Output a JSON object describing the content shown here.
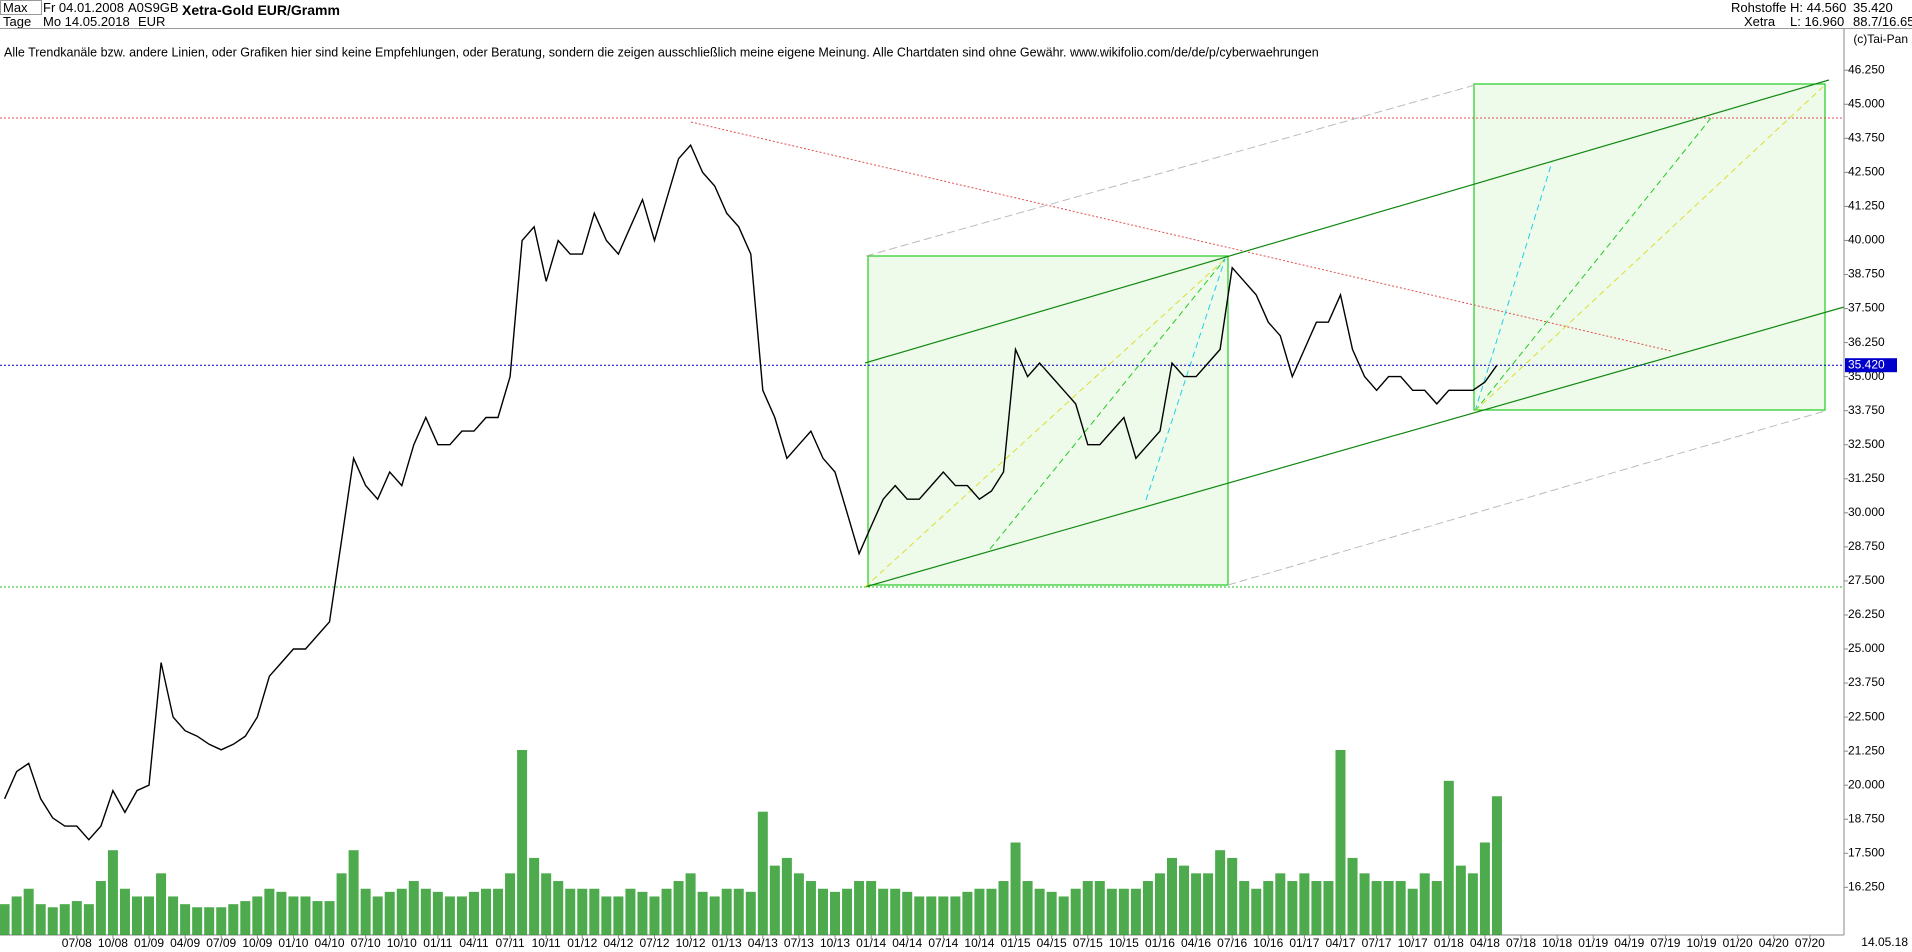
{
  "header": {
    "range": "Max",
    "start": "Fr 04.01.2008",
    "code": "A0S9GB",
    "title": "Xetra-Gold EUR/Gramm",
    "period": "Tage",
    "end": "Mo 14.05.2018",
    "currency": "EUR",
    "group": "Rohstoffe",
    "exchange": "Xetra",
    "high": "H: 44.560",
    "low": "L: 16.960",
    "price": "35.420",
    "ratio": "88.7/16.65"
  },
  "credit": "(c)Tai-Pan",
  "disclaimer": "Alle Trendkanäle bzw. andere Linien, oder Grafiken hier sind keine Empfehlungen, oder Beratung, sondern die zeigen ausschließlich meine eigene Meinung. Alle Chartdaten sind ohne Gewähr.  www.wikifolio.com/de/de/p/cyberwaehrungen",
  "chart_data": {
    "type": "line",
    "color": "#000000",
    "volume_color": "#2e9b2e",
    "last_color": "#0000cc",
    "categories": [
      null,
      null,
      null,
      null,
      null,
      null,
      "07/08",
      null,
      null,
      "10/08",
      null,
      null,
      "01/09",
      null,
      null,
      "04/09",
      null,
      null,
      "07/09",
      null,
      null,
      "10/09",
      null,
      null,
      "01/10",
      null,
      null,
      "04/10",
      null,
      null,
      "07/10",
      null,
      null,
      "10/10",
      null,
      null,
      "01/11",
      null,
      null,
      "04/11",
      null,
      null,
      "07/11",
      null,
      null,
      "10/11",
      null,
      null,
      "01/12",
      null,
      null,
      "04/12",
      null,
      null,
      "07/12",
      null,
      null,
      "10/12",
      null,
      null,
      "01/13",
      null,
      null,
      "04/13",
      null,
      null,
      "07/13",
      null,
      null,
      "10/13",
      null,
      null,
      "01/14",
      null,
      null,
      "04/14",
      null,
      null,
      "07/14",
      null,
      null,
      "10/14",
      null,
      null,
      "01/15",
      null,
      null,
      "04/15",
      null,
      null,
      "07/15",
      null,
      null,
      "10/15",
      null,
      null,
      "01/16",
      null,
      null,
      "04/16",
      null,
      null,
      "07/16",
      null,
      null,
      "10/16",
      null,
      null,
      "01/17",
      null,
      null,
      "04/17",
      null,
      null,
      "07/17",
      null,
      null,
      "10/17",
      null,
      null,
      "01/18",
      null,
      null,
      "04/18",
      null,
      null,
      "07/18",
      null,
      null,
      "10/18",
      null,
      null,
      "01/19",
      null,
      null,
      "04/19",
      null,
      null,
      "07/19",
      null,
      null,
      "10/19",
      null,
      null,
      "01/20",
      null,
      null,
      "04/20",
      null,
      null,
      "07/20",
      null,
      null
    ],
    "values": [
      19.5,
      20.5,
      20.8,
      19.5,
      18.8,
      18.5,
      18.5,
      18.0,
      18.5,
      19.8,
      19.0,
      19.8,
      20.0,
      24.5,
      22.5,
      22.0,
      21.8,
      21.5,
      21.3,
      21.5,
      21.8,
      22.5,
      24.0,
      24.5,
      25.0,
      25.0,
      25.5,
      26.0,
      29.0,
      32.0,
      31.0,
      30.5,
      31.5,
      31.0,
      32.5,
      33.5,
      32.5,
      32.5,
      33.0,
      33.0,
      33.5,
      33.5,
      35.0,
      40.0,
      40.5,
      38.5,
      40.0,
      39.5,
      39.5,
      41.0,
      40.0,
      39.5,
      40.5,
      41.5,
      40.0,
      41.5,
      43.0,
      43.5,
      42.5,
      42.0,
      41.0,
      40.5,
      39.5,
      34.5,
      33.5,
      32.0,
      32.5,
      33.0,
      32.0,
      31.5,
      30.0,
      28.5,
      29.5,
      30.5,
      31.0,
      30.5,
      30.5,
      31.0,
      31.5,
      31.0,
      31.0,
      30.5,
      30.8,
      31.5,
      36.0,
      35.0,
      35.5,
      35.0,
      34.5,
      34.0,
      32.5,
      32.5,
      33.0,
      33.5,
      32.0,
      32.5,
      33.0,
      35.5,
      35.0,
      35.0,
      35.5,
      36.0,
      39.0,
      38.5,
      38.0,
      37.0,
      36.5,
      35.0,
      36.0,
      37.0,
      37.0,
      38.0,
      36.0,
      35.0,
      34.5,
      35.0,
      35.0,
      34.5,
      34.5,
      34.0,
      34.5,
      34.5,
      34.5,
      34.8,
      35.42,
      null,
      null,
      null,
      null,
      null,
      null,
      null,
      null,
      null,
      null,
      null,
      null,
      null,
      null,
      null,
      null,
      null,
      null,
      null,
      null,
      null,
      null,
      null,
      null,
      null,
      null,
      null,
      null
    ],
    "volume": [
      20,
      25,
      30,
      20,
      18,
      20,
      22,
      20,
      35,
      55,
      30,
      25,
      25,
      40,
      25,
      20,
      18,
      18,
      18,
      20,
      22,
      25,
      30,
      28,
      25,
      25,
      22,
      22,
      40,
      55,
      30,
      25,
      28,
      30,
      35,
      30,
      28,
      25,
      25,
      28,
      30,
      30,
      40,
      120,
      50,
      40,
      35,
      30,
      30,
      30,
      25,
      25,
      30,
      28,
      25,
      30,
      35,
      40,
      28,
      25,
      30,
      30,
      28,
      80,
      45,
      50,
      40,
      35,
      30,
      28,
      30,
      35,
      35,
      30,
      30,
      28,
      25,
      25,
      25,
      25,
      28,
      30,
      30,
      35,
      60,
      35,
      30,
      28,
      25,
      30,
      35,
      35,
      30,
      30,
      30,
      35,
      40,
      50,
      45,
      40,
      40,
      55,
      50,
      35,
      30,
      35,
      40,
      35,
      40,
      35,
      35,
      120,
      50,
      40,
      35,
      35,
      35,
      30,
      40,
      35,
      100,
      45,
      40,
      60,
      90,
      null,
      null,
      null,
      null,
      null,
      null,
      null,
      null,
      null,
      null,
      null,
      null,
      null,
      null,
      null,
      null,
      null,
      null,
      null,
      null,
      null,
      null,
      null,
      null,
      null,
      null,
      null,
      null
    ],
    "last": {
      "value": 35.42,
      "label": "35.420"
    },
    "ylim": [
      14.5,
      47.8
    ],
    "yticks": [
      {
        "value": 16.25,
        "label": "16.250"
      },
      {
        "value": 17.5,
        "label": "17.500"
      },
      {
        "value": 18.75,
        "label": "18.750"
      },
      {
        "value": 20,
        "label": "20.000"
      },
      {
        "value": 21.25,
        "label": "21.250"
      },
      {
        "value": 22.5,
        "label": "22.500"
      },
      {
        "value": 23.75,
        "label": "23.750"
      },
      {
        "value": 25,
        "label": "25.000"
      },
      {
        "value": 26.25,
        "label": "26.250"
      },
      {
        "value": 27.5,
        "label": "27.500"
      },
      {
        "value": 28.75,
        "label": "28.750"
      },
      {
        "value": 30,
        "label": "30.000"
      },
      {
        "value": 31.25,
        "label": "31.250"
      },
      {
        "value": 32.5,
        "label": "32.500"
      },
      {
        "value": 33.75,
        "label": "33.750"
      },
      {
        "value": 35,
        "label": "35.000"
      },
      {
        "value": 36.25,
        "label": "36.250"
      },
      {
        "value": 37.5,
        "label": "37.500"
      },
      {
        "value": 38.75,
        "label": "38.750"
      },
      {
        "value": 40,
        "label": "40.000"
      },
      {
        "value": 41.25,
        "label": "41.250"
      },
      {
        "value": 42.5,
        "label": "42.500"
      },
      {
        "value": 43.75,
        "label": "43.750"
      },
      {
        "value": 45,
        "label": "45.000"
      },
      {
        "value": 46.25,
        "label": "46.250"
      }
    ],
    "x_end_label": "14.05.18"
  }
}
